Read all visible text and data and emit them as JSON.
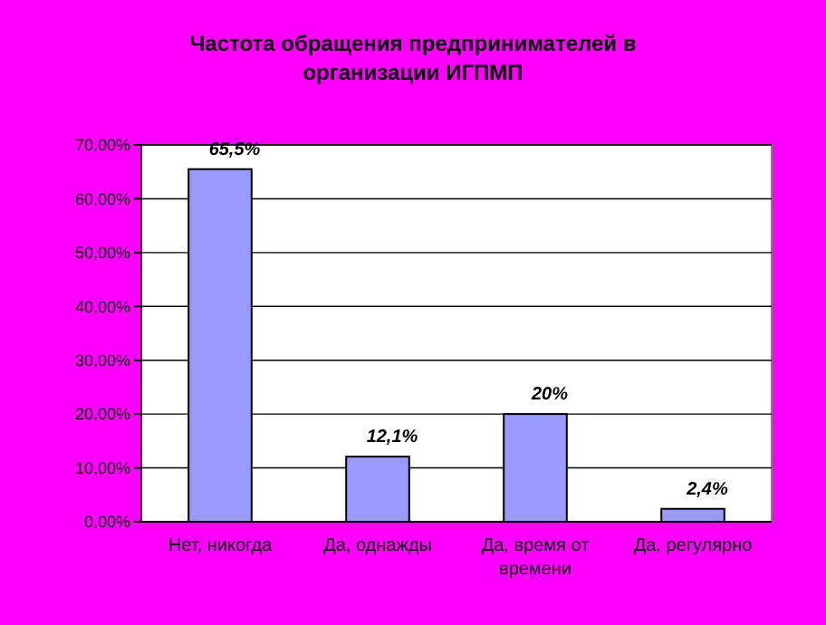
{
  "chart_data": {
    "type": "bar",
    "title": "Частота обращения предпринимателей в организации ИГПМП",
    "categories": [
      "Нет, никогда",
      "Да, однажды",
      "Да, время от времени",
      "Да, регулярно"
    ],
    "values": [
      65.5,
      12.1,
      20,
      2.4
    ],
    "color": "#9999ff",
    "value_labels": [
      "65,5%",
      "12,1%",
      "20%",
      "2,4%"
    ],
    "ylim": [
      0,
      70
    ],
    "yticks": [
      {
        "value": 0,
        "label": "0,00%"
      },
      {
        "value": 10,
        "label": "10,00%"
      },
      {
        "value": 20,
        "label": "20,00%"
      },
      {
        "value": 30,
        "label": "30,00%"
      },
      {
        "value": 40,
        "label": "40,00%"
      },
      {
        "value": 50,
        "label": "50,00%"
      },
      {
        "value": 60,
        "label": "60,00%"
      },
      {
        "value": 70,
        "label": "70,00%"
      }
    ],
    "grid": "y"
  }
}
